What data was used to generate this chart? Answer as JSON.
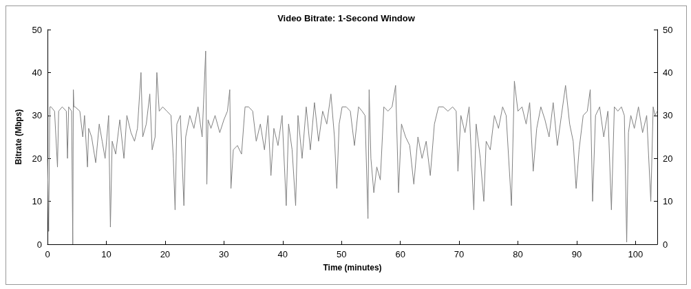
{
  "chart_data": {
    "type": "line",
    "title": "Video Bitrate: 1-Second Window",
    "xlabel": "Time (minutes)",
    "ylabel": "Bitrate (Mbps)",
    "xlim": [
      0,
      103.7
    ],
    "xticks": [
      0,
      10,
      20,
      30,
      40,
      50,
      60,
      70,
      80,
      90,
      100
    ],
    "ylim": [
      0,
      50
    ],
    "yticks": [
      0,
      10,
      20,
      30,
      40,
      50
    ],
    "y2lim": [
      0,
      50
    ],
    "y2ticks": [
      0,
      10,
      20,
      30,
      40,
      50
    ],
    "grid": false,
    "marker": "none",
    "line_style": "solid",
    "series": [
      {
        "color": "#808080",
        "x": [
          0,
          0.2,
          0.4,
          0.6,
          1.2,
          1.7,
          1.9,
          2.5,
          3.2,
          3.4,
          3.6,
          4.1,
          4.3,
          4.4,
          4.5,
          4.7,
          5.5,
          6,
          6.3,
          6.8,
          7,
          7.5,
          8.2,
          8.8,
          9.3,
          9.8,
          10.4,
          10.7,
          11,
          11.6,
          12.3,
          13,
          13.5,
          14.2,
          14.8,
          15.3,
          15.9,
          16.2,
          16.8,
          17.4,
          17.8,
          18.3,
          18.6,
          19,
          19.6,
          20.3,
          21,
          21.4,
          21.7,
          22,
          22.6,
          23.2,
          23.5,
          24.2,
          24.9,
          25.6,
          26.3,
          26.9,
          27.1,
          27.3,
          27.8,
          28.5,
          29.3,
          30,
          30.6,
          31,
          31.2,
          31.6,
          32.3,
          33,
          33.6,
          34.2,
          34.9,
          35.5,
          36.2,
          36.9,
          37.5,
          38,
          38.5,
          39.2,
          39.9,
          40.6,
          41,
          41.6,
          42.2,
          42.6,
          43.3,
          44,
          44.7,
          45.4,
          46.1,
          46.8,
          47.5,
          48.2,
          48.8,
          49.2,
          49.6,
          50.1,
          50.8,
          51.5,
          52.2,
          52.9,
          53.5,
          54,
          54.5,
          54.7,
          55,
          55.5,
          56,
          56.6,
          57.2,
          57.9,
          58.6,
          59.2,
          59.7,
          60.2,
          60.9,
          61.6,
          62.3,
          63,
          63.7,
          64.4,
          65.1,
          65.8,
          66.5,
          67.3,
          68.1,
          68.9,
          69.5,
          69.8,
          70.3,
          71,
          71.7,
          72.5,
          72.9,
          73.6,
          74.2,
          74.6,
          75.3,
          76,
          76.7,
          77.4,
          78,
          78.9,
          79.4,
          80,
          80.7,
          81.4,
          82,
          82.6,
          83.2,
          83.9,
          84.6,
          85.3,
          86,
          86.7,
          87.4,
          88.1,
          88.8,
          89.4,
          89.9,
          90.4,
          91.1,
          91.8,
          92.3,
          92.7,
          93.2,
          93.9,
          94.6,
          95.3,
          95.9,
          96.4,
          97,
          97.6,
          98.1,
          98.5,
          98.8,
          99.2,
          99.8,
          100.5,
          101.2,
          101.9,
          102.6,
          103,
          103.3,
          103.7
        ],
        "values": [
          20,
          3,
          32,
          32,
          31,
          18,
          31,
          32,
          31,
          20,
          32,
          31,
          0,
          36,
          32,
          32,
          31,
          25,
          30,
          18,
          27,
          25,
          19,
          28,
          24,
          20,
          30,
          4,
          24,
          21,
          29,
          20,
          30,
          26,
          24,
          27,
          40,
          25,
          28,
          35,
          22,
          25,
          40,
          31,
          32,
          31,
          30,
          20,
          8,
          28,
          30,
          9,
          25,
          30,
          27,
          32,
          25,
          45,
          14,
          29,
          27,
          30,
          26,
          29,
          31,
          36,
          13,
          22,
          23,
          21,
          32,
          32,
          31,
          24,
          28,
          22,
          30,
          16,
          27,
          23,
          30,
          9,
          28,
          22,
          9,
          30,
          20,
          32,
          22,
          33,
          24,
          31,
          28,
          35,
          25,
          13,
          28,
          32,
          32,
          31,
          23,
          32,
          31,
          30,
          6,
          36,
          20,
          12,
          18,
          15,
          32,
          31,
          32,
          37,
          12,
          28,
          25,
          23,
          14,
          25,
          20,
          24,
          16,
          28,
          32,
          32,
          31,
          32,
          31,
          17,
          30,
          26,
          32,
          8,
          28,
          20,
          10,
          24,
          22,
          30,
          27,
          32,
          30,
          9,
          38,
          31,
          32,
          28,
          33,
          17,
          27,
          32,
          29,
          25,
          33,
          23,
          30,
          37,
          28,
          24,
          13,
          22,
          30,
          31,
          36,
          10,
          30,
          32,
          25,
          31,
          8,
          32,
          31,
          32,
          30,
          0.5,
          26,
          30,
          27,
          32,
          26,
          30,
          10,
          32,
          30,
          31
        ]
      }
    ]
  }
}
